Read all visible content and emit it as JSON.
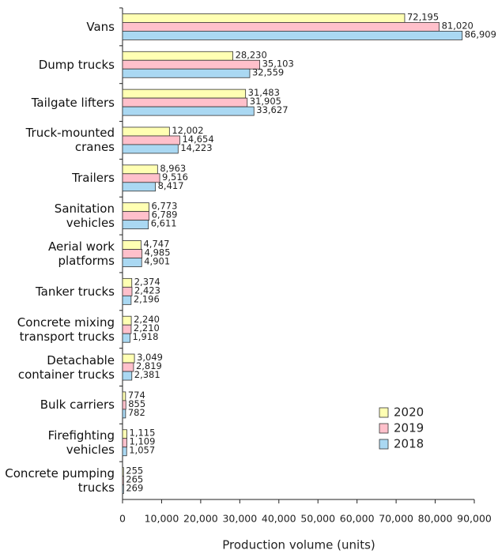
{
  "chart_data": {
    "type": "hbar",
    "x_label": "Production volume (units)",
    "categories": [
      "Vans",
      "Dump trucks",
      "Tailgate lifters",
      "Truck-mounted cranes",
      "Trailers",
      "Sanitation vehicles",
      "Aerial work platforms",
      "Tanker trucks",
      "Concrete mixing transport trucks",
      "Detachable container trucks",
      "Bulk carriers",
      "Firefighting vehicles",
      "Concrete pumping trucks"
    ],
    "series": [
      {
        "name": "2020",
        "color": "#ffffb3",
        "values": [
          72195,
          28230,
          31483,
          12002,
          8963,
          6773,
          4747,
          2374,
          2240,
          3049,
          774,
          1115,
          255
        ],
        "value_labels": [
          "72,195",
          "28,230",
          "31,483",
          "12,002",
          "8,963",
          "6,773",
          "4,747",
          "2,374",
          "2,240",
          "3,049",
          "774",
          "1,115",
          "255"
        ]
      },
      {
        "name": "2019",
        "color": "#ffc0cb",
        "values": [
          81020,
          35103,
          31905,
          14654,
          9516,
          6789,
          4985,
          2423,
          2210,
          2819,
          855,
          1109,
          265
        ],
        "value_labels": [
          "81,020",
          "35,103",
          "31,905",
          "14,654",
          "9,516",
          "6,789",
          "4,985",
          "2,423",
          "2,210",
          "2,819",
          "855",
          "1,109",
          "265"
        ]
      },
      {
        "name": "2018",
        "color": "#aad8f2",
        "values": [
          86909,
          32559,
          33627,
          14223,
          8417,
          6611,
          4901,
          2196,
          1918,
          2381,
          782,
          1057,
          269
        ],
        "value_labels": [
          "86,909",
          "32,559",
          "33,627",
          "14,223",
          "8,417",
          "6,611",
          "4,901",
          "2,196",
          "1,918",
          "2,381",
          "782",
          "1,057",
          "269"
        ]
      }
    ],
    "xlim": [
      0,
      90000
    ],
    "xticks": [
      0,
      {
        "value": 10000,
        "label": "10,000"
      },
      {
        "value": 20000,
        "label": "20,000"
      },
      {
        "value": 30000,
        "label": "30,000"
      },
      {
        "value": 40000,
        "label": "40,000"
      },
      {
        "value": 50000,
        "label": "50,000"
      },
      {
        "value": 60000,
        "label": "60,000"
      },
      {
        "value": 70000,
        "label": "70,000"
      },
      {
        "value": 80000,
        "label": "80,000"
      },
      {
        "value": 90000,
        "label": {
          "_": 0
        }
      }
    ],
    "legend": "lower right"
  }
}
